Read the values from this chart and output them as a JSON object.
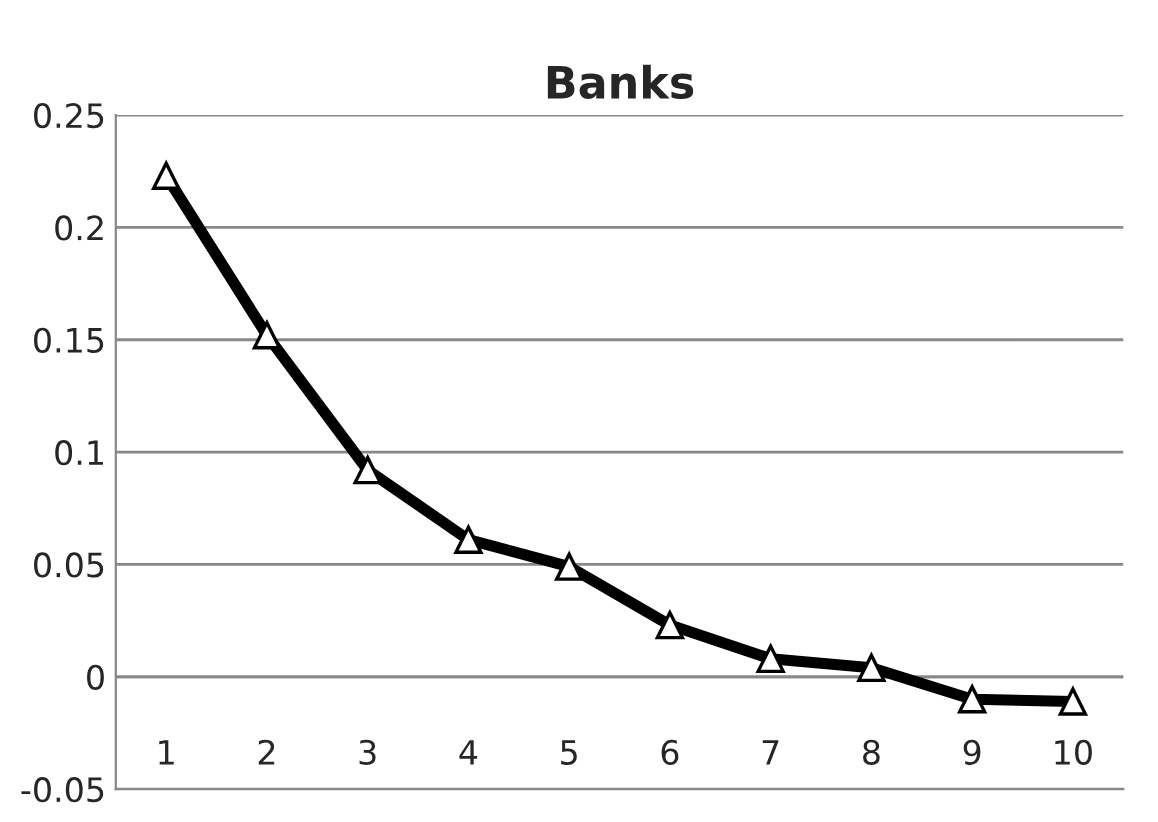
{
  "chart_data": {
    "type": "line",
    "title": "Banks",
    "categories": [
      "1",
      "2",
      "3",
      "4",
      "5",
      "6",
      "7",
      "8",
      "9",
      "10"
    ],
    "series": [
      {
        "color": "#000000",
        "values": [
          0.223,
          0.152,
          0.092,
          0.061,
          0.049,
          0.023,
          0.008,
          0.004,
          -0.01,
          -0.011
        ]
      }
    ],
    "ylim": [
      -0.05,
      0.25
    ],
    "yticks": [
      -0.05,
      0,
      0.05,
      0.1,
      0.15,
      0.2,
      0.25
    ],
    "grid": "y",
    "marker": "triangle",
    "line_style": "solid",
    "legend": false
  }
}
